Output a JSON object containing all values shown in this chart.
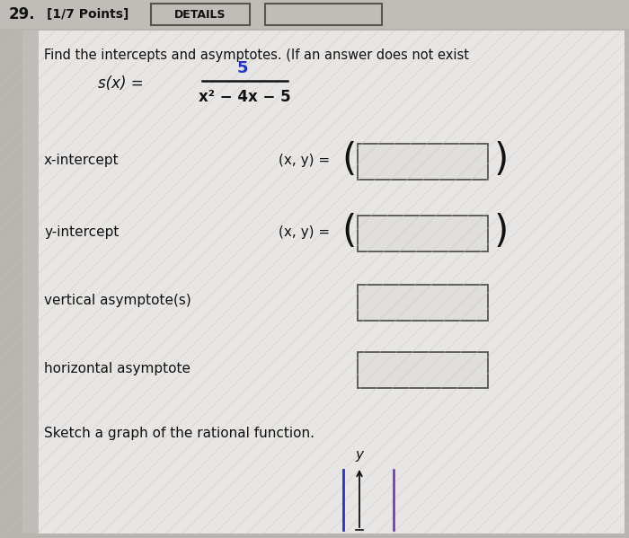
{
  "bg_outer": "#b8b4b0",
  "bg_header": "#c0bcb8",
  "bg_content": "#dcdad8",
  "bg_content2": "#e8e6e4",
  "box_fill": "#e0dedd",
  "box_edge": "#555550",
  "text_color": "#111111",
  "blue_color": "#2233cc",
  "purple_color": "#6633aa",
  "problem_number": "29.",
  "points_label": "[1/7 Points]",
  "details_btn": "DETAILS",
  "instruction": "Find the intercepts and asymptotes. (If an answer does not exist",
  "func_sx": "s(x) =",
  "numerator": "5",
  "denominator": "x² − 4x − 5",
  "x_intercept_label": "x-intercept",
  "y_intercept_label": "y-intercept",
  "xy_eq": "(x, y) =",
  "vert_asym_label": "vertical asymptote(s)",
  "horiz_asym_label": "horizontal asymptote",
  "sketch_label": "Sketch a graph of the rational function.",
  "y_label": "y",
  "figsize": [
    7.0,
    5.99
  ],
  "dpi": 100
}
